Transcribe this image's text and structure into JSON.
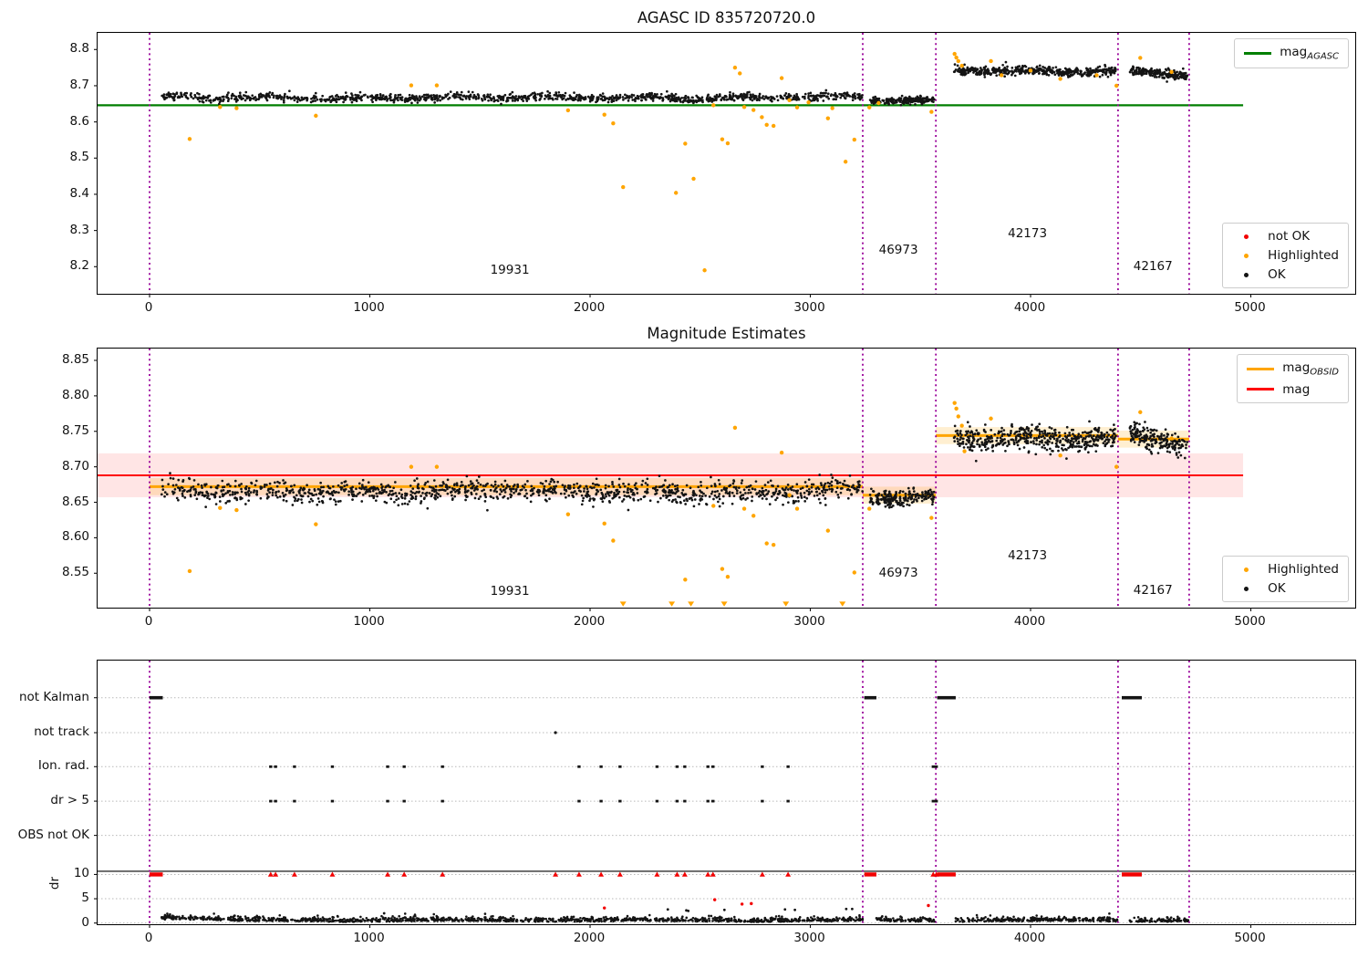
{
  "titles": {
    "top": "AGASC ID 835720720.0",
    "middle": "Magnitude Estimates"
  },
  "colors": {
    "agasc_line": "#007f00",
    "obsid_line": "#ffa500",
    "mag_line": "#ff0000",
    "mag_band": "rgba(255,0,0,0.10)",
    "obsid_band": "rgba(255,165,0,0.18)",
    "boundary": "#990099",
    "ok_point": "#141414",
    "highlighted_point": "#ffa500",
    "not_ok_point": "#f20000",
    "grid": "#b9b9b9"
  },
  "chart_data": [
    {
      "type": "scatter",
      "title": "AGASC ID 835720720.0",
      "xlim": [
        -236,
        5474
      ],
      "ylim": [
        8.1251,
        8.8461
      ],
      "xticks": [
        {
          "v": 0,
          "label": "0"
        },
        {
          "v": 1000,
          "label": "1000"
        },
        {
          "v": 2000,
          "label": "2000"
        },
        {
          "v": 3000,
          "label": "3000"
        },
        {
          "v": 4000,
          "label": "4000"
        },
        {
          "v": 5000,
          "label": "5000"
        }
      ],
      "yticks": [
        {
          "v": 8.2,
          "label": "8.2"
        },
        {
          "v": 8.3,
          "label": "8.3"
        },
        {
          "v": 8.4,
          "label": "8.4"
        },
        {
          "v": 8.5,
          "label": "8.5"
        },
        {
          "v": 8.6,
          "label": "8.6"
        },
        {
          "v": 8.7,
          "label": "8.7"
        },
        {
          "v": 8.8,
          "label": "8.8"
        }
      ],
      "boundaries": [
        0,
        3238,
        3570,
        4397,
        4720
      ],
      "ref_line": {
        "y": 8.646,
        "x_start_at_frame": true,
        "x_end": 4965
      },
      "segments": [
        {
          "obsid": "19931",
          "x0": 55,
          "x1": 3238,
          "mean": 8.667,
          "sd": 0.0055,
          "n": 1200,
          "wave": 0.0028,
          "trend": 0
        },
        {
          "obsid": "46973",
          "x0": 3270,
          "x1": 3562,
          "mean": 8.659,
          "sd": 0.005,
          "n": 200,
          "wave": 0.002,
          "trend": 0
        },
        {
          "obsid": "42173",
          "x0": 3652,
          "x1": 4388,
          "mean": 8.742,
          "sd": 0.0062,
          "n": 480,
          "wave": 0.003,
          "trend": -0.006
        },
        {
          "obsid": "42167",
          "x0": 4450,
          "x1": 4712,
          "mean": 8.734,
          "sd": 0.006,
          "n": 200,
          "wave": 0.003,
          "trend": -0.012
        }
      ],
      "highlighted": [
        [
          182,
          8.553
        ],
        [
          320,
          8.641
        ],
        [
          395,
          8.638
        ],
        [
          755,
          8.617
        ],
        [
          1188,
          8.701
        ],
        [
          1304,
          8.701
        ],
        [
          1900,
          8.632
        ],
        [
          2065,
          8.62
        ],
        [
          2105,
          8.596
        ],
        [
          2150,
          8.42
        ],
        [
          2390,
          8.404
        ],
        [
          2432,
          8.54
        ],
        [
          2470,
          8.443
        ],
        [
          2520,
          8.19
        ],
        [
          2560,
          8.646
        ],
        [
          2600,
          8.552
        ],
        [
          2625,
          8.541
        ],
        [
          2658,
          8.75
        ],
        [
          2680,
          8.734
        ],
        [
          2700,
          8.641
        ],
        [
          2742,
          8.633
        ],
        [
          2780,
          8.613
        ],
        [
          2802,
          8.592
        ],
        [
          2833,
          8.589
        ],
        [
          2870,
          8.721
        ],
        [
          2905,
          8.66
        ],
        [
          2940,
          8.64
        ],
        [
          2992,
          8.654
        ],
        [
          3080,
          8.61
        ],
        [
          3100,
          8.638
        ],
        [
          3160,
          8.49
        ],
        [
          3200,
          8.551
        ],
        [
          3268,
          8.64
        ],
        [
          3310,
          8.652
        ],
        [
          3550,
          8.628
        ],
        [
          3655,
          8.788
        ],
        [
          3663,
          8.778
        ],
        [
          3672,
          8.768
        ],
        [
          3688,
          8.755
        ],
        [
          3820,
          8.768
        ],
        [
          3868,
          8.729
        ],
        [
          4000,
          8.742
        ],
        [
          4135,
          8.719
        ],
        [
          4300,
          8.729
        ],
        [
          4390,
          8.7
        ],
        [
          4498,
          8.777
        ],
        [
          4640,
          8.738
        ]
      ],
      "annotations": [
        {
          "text": "19931",
          "x": 1640,
          "y": 8.188
        },
        {
          "text": "46973",
          "x": 3404,
          "y": 8.243
        },
        {
          "text": "42173",
          "x": 3990,
          "y": 8.288
        },
        {
          "text": "42167",
          "x": 4560,
          "y": 8.198
        }
      ],
      "legends": [
        {
          "pos": "tr",
          "items": [
            {
              "type": "line",
              "color": "#007f00",
              "main": "mag",
              "sub": "AGASC"
            }
          ]
        },
        {
          "pos": "br",
          "items": [
            {
              "type": "dot",
              "color": "#f20000",
              "label": "not OK"
            },
            {
              "type": "dot",
              "color": "#ffa500",
              "label": "Highlighted"
            },
            {
              "type": "dot",
              "color": "#141414",
              "label": "OK"
            }
          ]
        }
      ]
    },
    {
      "type": "scatter",
      "title": "Magnitude Estimates",
      "xlim": [
        -236,
        5474
      ],
      "ylim": [
        8.5015,
        8.8667
      ],
      "xticks": [
        {
          "v": 0,
          "label": "0"
        },
        {
          "v": 1000,
          "label": "1000"
        },
        {
          "v": 2000,
          "label": "2000"
        },
        {
          "v": 3000,
          "label": "3000"
        },
        {
          "v": 4000,
          "label": "4000"
        },
        {
          "v": 5000,
          "label": "5000"
        }
      ],
      "yticks": [
        {
          "v": 8.55,
          "label": "8.55"
        },
        {
          "v": 8.6,
          "label": "8.60"
        },
        {
          "v": 8.65,
          "label": "8.65"
        },
        {
          "v": 8.7,
          "label": "8.70"
        },
        {
          "v": 8.75,
          "label": "8.75"
        },
        {
          "v": 8.8,
          "label": "8.80"
        },
        {
          "v": 8.85,
          "label": "8.85"
        }
      ],
      "boundaries": [
        0,
        3238,
        3570,
        4397,
        4720
      ],
      "mag_line": {
        "y": 8.688,
        "band": [
          8.657,
          8.719
        ],
        "x_end": 4965
      },
      "obsid_lines": [
        {
          "obsid": "19931",
          "x0": 0,
          "x1": 3238,
          "y": 8.672
        },
        {
          "obsid": "46973",
          "x0": 3238,
          "x1": 3570,
          "y": 8.66
        },
        {
          "obsid": "42173",
          "x0": 3570,
          "x1": 4397,
          "y": 8.744
        },
        {
          "obsid": "42167",
          "x0": 4397,
          "x1": 4720,
          "y": 8.739
        }
      ],
      "obsid_band_halfwidth": 0.012,
      "segments": [
        {
          "obsid": "19931",
          "x0": 55,
          "x1": 3238,
          "mean": 8.665,
          "sd": 0.0075,
          "n": 1200,
          "wave": 0.003,
          "trend": 0
        },
        {
          "obsid": "46973",
          "x0": 3270,
          "x1": 3562,
          "mean": 8.656,
          "sd": 0.0062,
          "n": 200,
          "wave": 0.002,
          "trend": 0
        },
        {
          "obsid": "42173",
          "x0": 3652,
          "x1": 4388,
          "mean": 8.741,
          "sd": 0.0085,
          "n": 480,
          "wave": 0.0035,
          "trend": -0.004
        },
        {
          "obsid": "42167",
          "x0": 4450,
          "x1": 4712,
          "mean": 8.737,
          "sd": 0.0082,
          "n": 200,
          "wave": 0.003,
          "trend": -0.016
        }
      ],
      "highlighted": [
        [
          182,
          8.553
        ],
        [
          320,
          8.642
        ],
        [
          395,
          8.639
        ],
        [
          755,
          8.619
        ],
        [
          1188,
          8.7
        ],
        [
          1304,
          8.7
        ],
        [
          1900,
          8.633
        ],
        [
          2065,
          8.62
        ],
        [
          2105,
          8.596
        ],
        [
          2432,
          8.541
        ],
        [
          2560,
          8.645
        ],
        [
          2600,
          8.556
        ],
        [
          2625,
          8.545
        ],
        [
          2658,
          8.755
        ],
        [
          2700,
          8.641
        ],
        [
          2742,
          8.631
        ],
        [
          2802,
          8.592
        ],
        [
          2833,
          8.59
        ],
        [
          2870,
          8.72
        ],
        [
          2905,
          8.66
        ],
        [
          2940,
          8.641
        ],
        [
          3080,
          8.61
        ],
        [
          3200,
          8.551
        ],
        [
          3268,
          8.641
        ],
        [
          3550,
          8.628
        ],
        [
          3655,
          8.79
        ],
        [
          3663,
          8.782
        ],
        [
          3672,
          8.771
        ],
        [
          3688,
          8.758
        ],
        [
          3700,
          8.722
        ],
        [
          3820,
          8.768
        ],
        [
          4135,
          8.716
        ],
        [
          4390,
          8.7
        ],
        [
          4498,
          8.777
        ],
        [
          4640,
          8.74
        ]
      ],
      "clipped_low_x": [
        2150,
        2371,
        2458,
        2609,
        2889,
        3146
      ],
      "annotations": [
        {
          "text": "19931",
          "x": 1640,
          "y": 8.523
        },
        {
          "text": "46973",
          "x": 3404,
          "y": 8.549
        },
        {
          "text": "42173",
          "x": 3990,
          "y": 8.574
        },
        {
          "text": "42167",
          "x": 4560,
          "y": 8.525
        }
      ],
      "legends": [
        {
          "pos": "tr",
          "items": [
            {
              "type": "line",
              "color": "#ffa500",
              "main": "mag",
              "sub": "OBSID"
            },
            {
              "type": "line",
              "color": "#ff0000",
              "main": "mag",
              "sub": ""
            }
          ]
        },
        {
          "pos": "br",
          "items": [
            {
              "type": "dot",
              "color": "#ffa500",
              "label": "Highlighted"
            },
            {
              "type": "dot",
              "color": "#141414",
              "label": "OK"
            }
          ]
        }
      ]
    },
    {
      "type": "scatter",
      "title": "",
      "ylabel": "dr",
      "xlim": [
        -236,
        5474
      ],
      "ylim": [
        -0.25,
        54.05
      ],
      "xticks": [
        {
          "v": 0,
          "label": "0"
        },
        {
          "v": 1000,
          "label": "1000"
        },
        {
          "v": 2000,
          "label": "2000"
        },
        {
          "v": 3000,
          "label": "3000"
        },
        {
          "v": 4000,
          "label": "4000"
        },
        {
          "v": 5000,
          "label": "5000"
        }
      ],
      "yticks": [
        {
          "v": 46.4,
          "label": "not Kalman"
        },
        {
          "v": 39.2,
          "label": "not track"
        },
        {
          "v": 32.2,
          "label": "Ion. rad."
        },
        {
          "v": 25.1,
          "label": "dr > 5"
        },
        {
          "v": 18.05,
          "label": "OBS not OK"
        },
        {
          "v": 10,
          "label": "10"
        },
        {
          "v": 5,
          "label": "5"
        },
        {
          "v": 0,
          "label": "0"
        }
      ],
      "boundaries": [
        0,
        3238,
        3570,
        4397,
        4720
      ],
      "hline": 10.66,
      "not_kalman_runs": [
        [
          0,
          60
        ],
        [
          3245,
          3300
        ],
        [
          3576,
          3660
        ],
        [
          4414,
          4505
        ]
      ],
      "not_track_x": [
        1843
      ],
      "flag_rows": {
        "ion_rad_y": 32.2,
        "dr_gt5_y": 25.1
      },
      "flag_x": [
        550,
        572,
        658,
        830,
        1081,
        1156,
        1330,
        1950,
        2050,
        2136,
        2304,
        2395,
        2430,
        2535,
        2558,
        2782,
        2899,
        3558,
        3572
      ],
      "dr_clipped_runs": [
        [
          0,
          60
        ],
        [
          3245,
          3300
        ],
        [
          3576,
          3660
        ],
        [
          4414,
          4505
        ]
      ],
      "dr_clipped_singles_x": [
        550,
        572,
        658,
        830,
        1081,
        1156,
        1330,
        1843,
        1950,
        2050,
        2136,
        2304,
        2395,
        2430,
        2535,
        2558,
        2782,
        2899,
        3558,
        3572
      ],
      "dr_red_low": [
        [
          2065,
          3.1
        ],
        [
          2566,
          4.8
        ],
        [
          2690,
          3.9
        ],
        [
          2732,
          4.0
        ],
        [
          3536,
          3.6
        ]
      ],
      "dr_black_outliers": [
        [
          1065,
          2.0
        ],
        [
          2353,
          2.8
        ],
        [
          2437,
          2.6
        ],
        [
          2446,
          2.5
        ],
        [
          2610,
          2.7
        ],
        [
          2885,
          2.8
        ],
        [
          2930,
          2.7
        ],
        [
          3163,
          2.9
        ],
        [
          3190,
          2.9
        ]
      ],
      "dr_segments": [
        {
          "x0": 55,
          "x1": 3238,
          "n": 1250
        },
        {
          "x0": 3300,
          "x1": 3570,
          "n": 105
        },
        {
          "x0": 3660,
          "x1": 4397,
          "n": 290
        },
        {
          "x0": 4450,
          "x1": 4720,
          "n": 105
        }
      ]
    }
  ]
}
